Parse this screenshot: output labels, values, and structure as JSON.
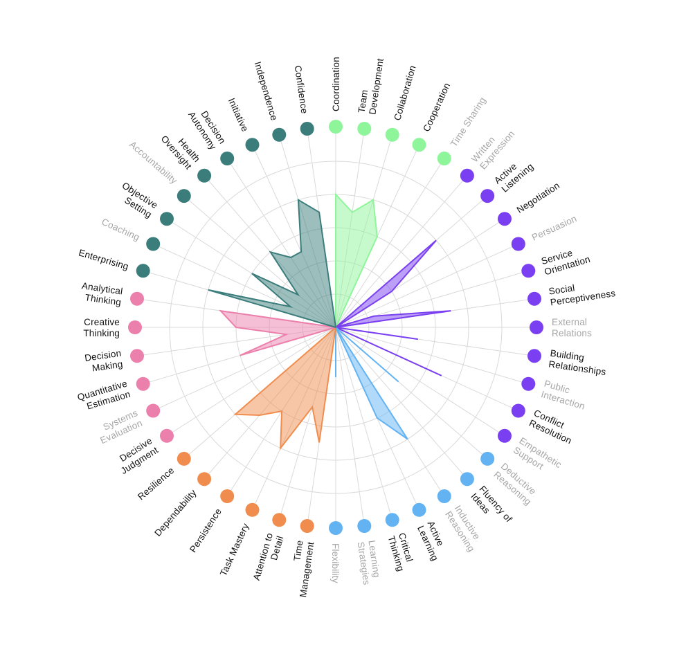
{
  "colors": {
    "teal": "#3a7d7b",
    "green": "#8ef59b",
    "purple": "#7a3ff0",
    "blue": "#63b3f3",
    "orange": "#f08d4e",
    "pink": "#ec80ac",
    "label_active": "#111111",
    "label_muted": "#a6a6a6"
  },
  "chart_data": {
    "type": "radar",
    "title": "",
    "r_range": [
      0,
      5
    ],
    "grid_rings": 5,
    "grid": true,
    "legend": "none",
    "axes": [
      {
        "label": "Coordination",
        "group": "green",
        "value": 4.0,
        "active": true
      },
      {
        "label": "Team Development",
        "group": "green",
        "value": 3.5,
        "active": true
      },
      {
        "label": "Collaboration",
        "group": "green",
        "value": 4.0,
        "active": true
      },
      {
        "label": "Cooperation",
        "group": "green",
        "value": 3.0,
        "active": true
      },
      {
        "label": "Time Sharing",
        "group": "green",
        "value": 0,
        "active": false
      },
      {
        "label": "Written Expression",
        "group": "purple",
        "value": 0,
        "active": false
      },
      {
        "label": "Active Listening",
        "group": "purple",
        "value": 4.0,
        "active": true
      },
      {
        "label": "Negotiation",
        "group": "purple",
        "value": 2.0,
        "active": true
      },
      {
        "label": "Persuasion",
        "group": "purple",
        "value": 0,
        "active": false
      },
      {
        "label": "Service Orientation",
        "group": "purple",
        "value": 1.2,
        "active": true
      },
      {
        "label": "Social Perceptiveness",
        "group": "purple",
        "value": 3.5,
        "active": true
      },
      {
        "label": "External Relations",
        "group": "purple",
        "value": 0,
        "active": false
      },
      {
        "label": "Building Relationships",
        "group": "purple",
        "value": 2.5,
        "active": true
      },
      {
        "label": "Public Interaction",
        "group": "purple",
        "value": 0,
        "active": false
      },
      {
        "label": "Conflict Resolution",
        "group": "purple",
        "value": 3.5,
        "active": true
      },
      {
        "label": "Empathetic Support",
        "group": "purple",
        "value": 0,
        "active": false
      },
      {
        "label": "Deductive Reasoning",
        "group": "blue",
        "value": 2.5,
        "active": false
      },
      {
        "label": "Fluency of Ideas",
        "group": "blue",
        "value": 0,
        "active": true
      },
      {
        "label": "Inductive Reasoning",
        "group": "blue",
        "value": 4.0,
        "active": false
      },
      {
        "label": "Active Learning",
        "group": "blue",
        "value": 3.0,
        "active": true
      },
      {
        "label": "Critical Thinking",
        "group": "blue",
        "value": 0,
        "active": true
      },
      {
        "label": "Learning Strategies",
        "group": "blue",
        "value": 0,
        "active": false
      },
      {
        "label": "Flexibility",
        "group": "blue",
        "value": 1.5,
        "active": false
      },
      {
        "label": "Time Management",
        "group": "orange",
        "value": 3.5,
        "active": true
      },
      {
        "label": "Attention to Detail",
        "group": "orange",
        "value": 2.5,
        "active": true
      },
      {
        "label": "Task Mastery",
        "group": "orange",
        "value": 4.0,
        "active": true
      },
      {
        "label": "Persistence",
        "group": "orange",
        "value": 3.0,
        "active": true
      },
      {
        "label": "Dependability",
        "group": "orange",
        "value": 3.5,
        "active": true
      },
      {
        "label": "Resilience",
        "group": "orange",
        "value": 4.0,
        "active": true
      },
      {
        "label": "Decisive Judgment",
        "group": "pink",
        "value": 0,
        "active": true
      },
      {
        "label": "Systems Evaluation",
        "group": "pink",
        "value": 0,
        "active": false
      },
      {
        "label": "Quantitative Estimation",
        "group": "pink",
        "value": 3.0,
        "active": true
      },
      {
        "label": "Decision Making",
        "group": "pink",
        "value": 1.5,
        "active": true
      },
      {
        "label": "Creative Thinking",
        "group": "pink",
        "value": 3.0,
        "active": true
      },
      {
        "label": "Analytical Thinking",
        "group": "pink",
        "value": 3.5,
        "active": true
      },
      {
        "label": "Enterprising",
        "group": "teal",
        "value": 4.0,
        "active": true
      },
      {
        "label": "Coaching",
        "group": "teal",
        "value": 1.5,
        "active": false
      },
      {
        "label": "Objective Setting",
        "group": "teal",
        "value": 3.0,
        "active": true
      },
      {
        "label": "Accountability",
        "group": "teal",
        "value": 1.5,
        "active": false
      },
      {
        "label": "Health Oversight",
        "group": "teal",
        "value": 3.0,
        "active": true
      },
      {
        "label": "Decision Autonomy",
        "group": "teal",
        "value": 2.5,
        "active": true
      },
      {
        "label": "Initiative",
        "group": "teal",
        "value": 2.5,
        "active": true
      },
      {
        "label": "Independence",
        "group": "teal",
        "value": 4.0,
        "active": true
      },
      {
        "label": "Confidence",
        "group": "teal",
        "value": 3.5,
        "active": true
      }
    ]
  }
}
